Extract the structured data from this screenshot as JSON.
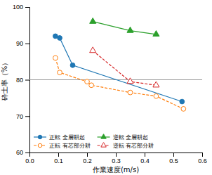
{
  "chart_data": {
    "type": "line",
    "xlabel": "作業速度(m/s)",
    "ylabel": "砕土率（%）",
    "xlim": [
      0.0,
      0.6
    ],
    "ylim": [
      60,
      100
    ],
    "xticks": [
      {
        "value": 0.0,
        "label": "0.0"
      },
      0.1,
      0.2,
      0.3,
      0.4,
      0.5,
      0.6
    ],
    "yticks": [
      60,
      70,
      80,
      90,
      100
    ],
    "hline_y": 80,
    "legend": "lower left",
    "series": [
      {
        "name": "正転 全層耕起",
        "x": [
          0.09,
          0.105,
          0.15,
          0.53
        ],
        "values": [
          92.0,
          91.5,
          84.0,
          74.0
        ],
        "marker": "circle",
        "line_style": "solid"
      },
      {
        "name": "正転 有芯部分耕",
        "x": [
          0.09,
          0.105,
          0.2,
          0.215,
          0.35,
          0.44,
          0.535
        ],
        "values": [
          86.0,
          82.0,
          79.5,
          78.5,
          76.5,
          75.5,
          72.0
        ],
        "marker": "circle-open",
        "line_style": "dashed"
      },
      {
        "name": "逆転 全層耕起",
        "x": [
          0.22,
          0.35,
          0.44
        ],
        "values": [
          96.0,
          93.5,
          92.5
        ],
        "marker": "triangle-up",
        "line_style": "solid"
      },
      {
        "name": "逆転 有芯部分耕",
        "x": [
          0.22,
          0.35,
          0.44
        ],
        "values": [
          88.0,
          79.5,
          78.5
        ],
        "marker": "triangle-up-open",
        "line_style": "dashed"
      }
    ]
  }
}
